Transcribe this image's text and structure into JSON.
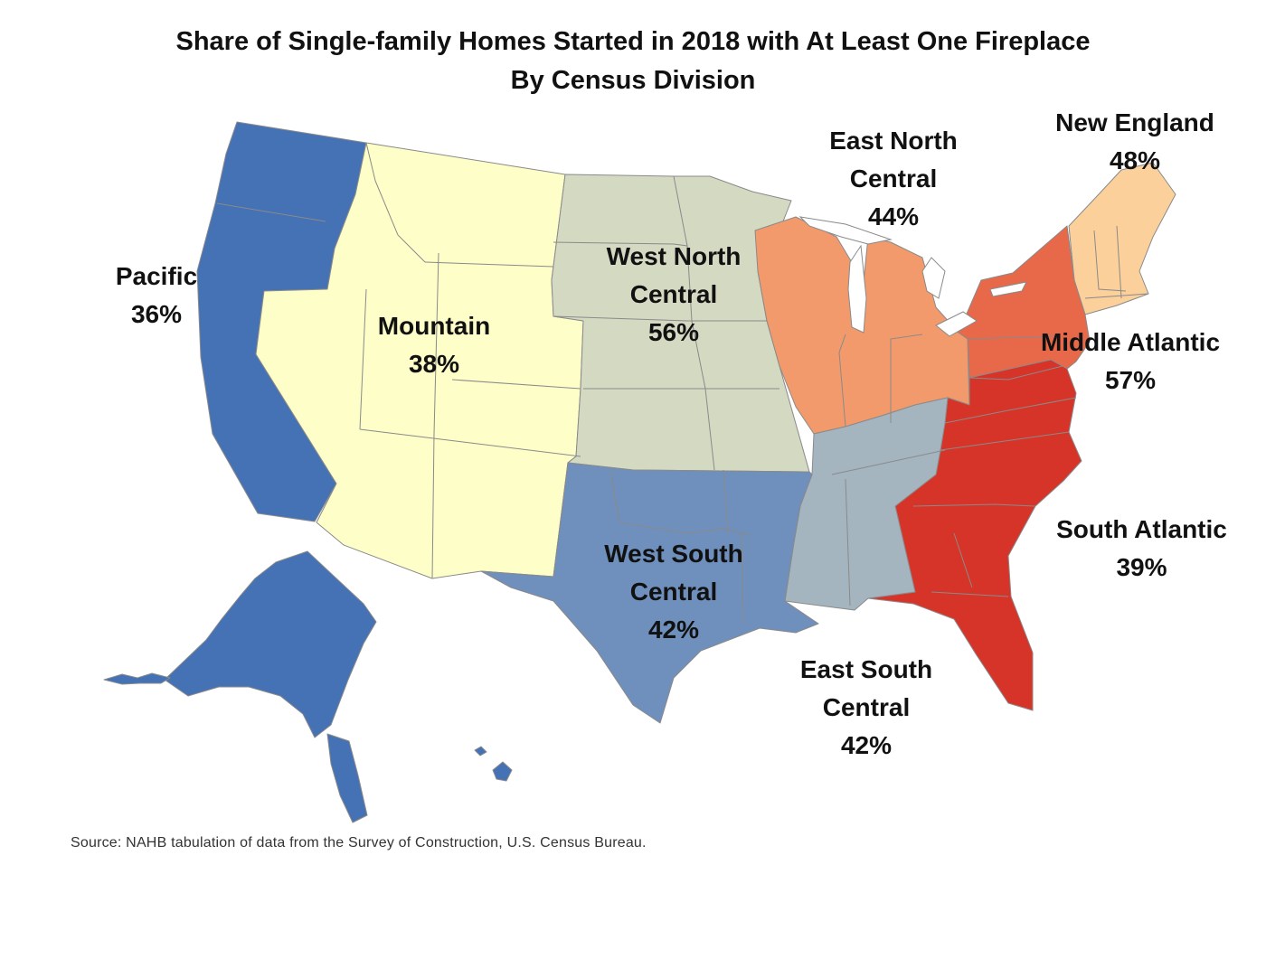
{
  "title": "Share of Single-family Homes Started in 2018 with At Least One Fireplace",
  "subtitle": "By Census Division",
  "source": "Source: NAHB tabulation of data from the Survey of Construction, U.S. Census Bureau.",
  "colors": {
    "pacific": "#4472b4",
    "mountain": "#fefec8",
    "west_north_central": "#d4d9c2",
    "east_north_central": "#f29a6c",
    "new_england": "#fbd09b",
    "middle_atlantic": "#e8684a",
    "south_atlantic": "#d63428",
    "east_south_central": "#a4b5c0",
    "west_south_central": "#6f8fbc"
  },
  "divisions": [
    {
      "id": "pacific",
      "name": "Pacific",
      "value": "36%"
    },
    {
      "id": "mountain",
      "name": "Mountain",
      "value": "38%"
    },
    {
      "id": "west_north_central",
      "name_line1": "West North",
      "name_line2": "Central",
      "value": "56%"
    },
    {
      "id": "east_north_central",
      "name_line1": "East North",
      "name_line2": "Central",
      "value": "44%"
    },
    {
      "id": "new_england",
      "name": "New England",
      "value": "48%"
    },
    {
      "id": "middle_atlantic",
      "name": "Middle Atlantic",
      "value": "57%"
    },
    {
      "id": "south_atlantic",
      "name": "South Atlantic",
      "value": "39%"
    },
    {
      "id": "east_south_central",
      "name_line1": "East South",
      "name_line2": "Central",
      "value": "42%"
    },
    {
      "id": "west_south_central",
      "name_line1": "West South",
      "name_line2": "Central",
      "value": "42%"
    }
  ]
}
